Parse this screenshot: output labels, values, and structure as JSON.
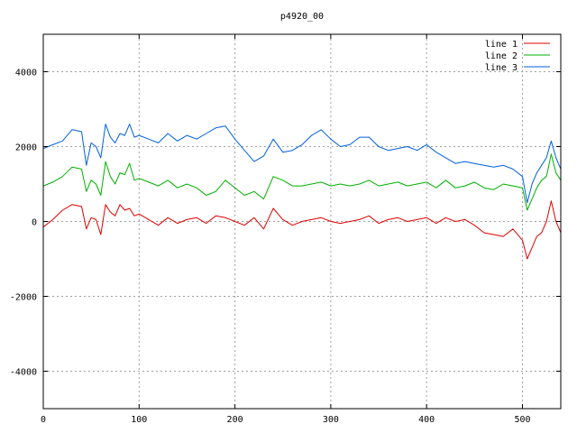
{
  "chart_data": {
    "type": "line",
    "title": "p4920_00",
    "xlabel": "",
    "ylabel": "",
    "xlim": [
      0,
      540
    ],
    "ylim": [
      -5000,
      5000
    ],
    "x_ticks": [
      0,
      100,
      200,
      300,
      400,
      500
    ],
    "y_ticks": [
      -4000,
      -2000,
      0,
      2000,
      4000
    ],
    "grid": true,
    "legend_position": "top-right",
    "series": [
      {
        "name": "line 1",
        "color": "#e00000",
        "x": [
          0,
          10,
          20,
          30,
          40,
          45,
          50,
          55,
          60,
          65,
          70,
          75,
          80,
          85,
          90,
          95,
          100,
          110,
          120,
          130,
          140,
          150,
          160,
          170,
          180,
          190,
          200,
          210,
          220,
          230,
          240,
          250,
          260,
          270,
          280,
          290,
          300,
          310,
          320,
          330,
          340,
          350,
          360,
          370,
          380,
          390,
          400,
          410,
          420,
          430,
          440,
          450,
          460,
          470,
          480,
          490,
          500,
          505,
          510,
          515,
          520,
          525,
          530,
          535,
          540
        ],
        "y": [
          -150,
          50,
          300,
          450,
          400,
          -200,
          100,
          50,
          -350,
          450,
          250,
          150,
          450,
          300,
          350,
          150,
          200,
          50,
          -100,
          100,
          -50,
          50,
          100,
          -50,
          150,
          100,
          0,
          -100,
          100,
          -200,
          350,
          50,
          -100,
          0,
          50,
          100,
          0,
          -50,
          0,
          50,
          150,
          -50,
          50,
          100,
          0,
          50,
          100,
          -50,
          100,
          0,
          50,
          -100,
          -300,
          -350,
          -400,
          -200,
          -500,
          -1000,
          -700,
          -400,
          -300,
          0,
          550,
          0,
          -300
        ]
      },
      {
        "name": "line 2",
        "color": "#00b000",
        "x": [
          0,
          10,
          20,
          30,
          40,
          45,
          50,
          55,
          60,
          65,
          70,
          75,
          80,
          85,
          90,
          95,
          100,
          110,
          120,
          130,
          140,
          150,
          160,
          170,
          180,
          190,
          200,
          210,
          220,
          230,
          240,
          250,
          260,
          270,
          280,
          290,
          300,
          310,
          320,
          330,
          340,
          350,
          360,
          370,
          380,
          390,
          400,
          410,
          420,
          430,
          440,
          450,
          460,
          470,
          480,
          490,
          500,
          505,
          510,
          515,
          520,
          525,
          530,
          535,
          540
        ],
        "y": [
          950,
          1050,
          1200,
          1450,
          1400,
          800,
          1100,
          1000,
          700,
          1600,
          1200,
          1000,
          1300,
          1250,
          1550,
          1100,
          1150,
          1050,
          950,
          1100,
          900,
          1000,
          900,
          700,
          800,
          1100,
          900,
          700,
          800,
          600,
          1200,
          1100,
          950,
          950,
          1000,
          1050,
          950,
          1000,
          950,
          1000,
          1100,
          950,
          1000,
          1050,
          950,
          1000,
          1050,
          900,
          1100,
          900,
          950,
          1050,
          900,
          850,
          1000,
          950,
          900,
          300,
          600,
          900,
          1100,
          1200,
          1800,
          1300,
          1100
        ]
      },
      {
        "name": "line 3",
        "color": "#0060e0",
        "x": [
          0,
          10,
          20,
          30,
          40,
          45,
          50,
          55,
          60,
          65,
          70,
          75,
          80,
          85,
          90,
          95,
          100,
          110,
          120,
          130,
          140,
          150,
          160,
          170,
          180,
          190,
          200,
          210,
          220,
          230,
          240,
          250,
          260,
          270,
          280,
          290,
          300,
          310,
          320,
          330,
          340,
          350,
          360,
          370,
          380,
          390,
          400,
          410,
          420,
          430,
          440,
          450,
          460,
          470,
          480,
          490,
          500,
          505,
          510,
          515,
          520,
          525,
          530,
          535,
          540
        ],
        "y": [
          1950,
          2050,
          2150,
          2450,
          2400,
          1500,
          2100,
          2000,
          1700,
          2600,
          2250,
          2100,
          2350,
          2300,
          2600,
          2250,
          2300,
          2200,
          2100,
          2350,
          2150,
          2300,
          2200,
          2350,
          2500,
          2550,
          2200,
          1900,
          1600,
          1750,
          2200,
          1850,
          1900,
          2050,
          2300,
          2450,
          2200,
          2000,
          2050,
          2250,
          2250,
          2000,
          1900,
          1950,
          2000,
          1900,
          2050,
          1850,
          1700,
          1550,
          1600,
          1550,
          1500,
          1450,
          1500,
          1400,
          1200,
          500,
          1000,
          1300,
          1500,
          1700,
          2150,
          1700,
          1400
        ]
      }
    ]
  }
}
